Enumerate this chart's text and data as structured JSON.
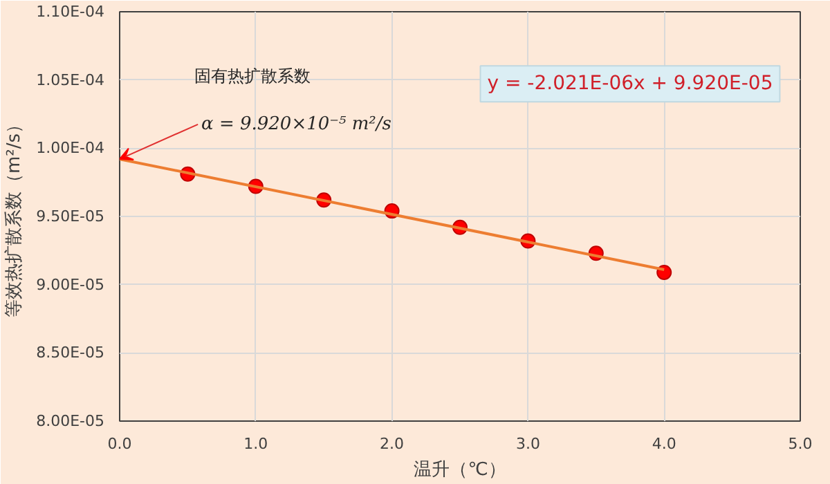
{
  "chart_data": {
    "type": "scatter",
    "xlabel": "温升（℃）",
    "ylabel": "等效热扩散系数（m²/s）",
    "x": [
      0.5,
      1.0,
      1.5,
      2.0,
      2.5,
      3.0,
      3.5,
      4.0
    ],
    "series": [
      {
        "color": "#ff0000",
        "marker": "circle",
        "values": [
          9.81e-05,
          9.72e-05,
          9.62e-05,
          9.54e-05,
          9.42e-05,
          9.32e-05,
          9.23e-05,
          9.09e-05
        ]
      },
      {
        "type": "line",
        "color": "#ed7d31",
        "x": [
          0.0,
          4.0
        ],
        "values": [
          9.92e-05,
          9.11e-05
        ]
      }
    ],
    "xlim": [
      0.0,
      5.0
    ],
    "xticks": [
      {
        "value": 0,
        "label": "0.0"
      },
      {
        "value": 1,
        "label": "1.0"
      },
      {
        "value": 2,
        "label": "2.0"
      },
      {
        "value": 3,
        "label": "3.0"
      },
      {
        "value": 4,
        "label": "4.0"
      },
      {
        "value": 5,
        "label": "5.0"
      }
    ],
    "ylim": [
      8e-05,
      0.00011
    ],
    "yticks": [
      {
        "value": 8e-05,
        "label": "8.00E-05"
      },
      {
        "value": 8.5e-05,
        "label": "8.50E-05"
      },
      {
        "value": 9e-05,
        "label": "9.00E-05"
      },
      {
        "value": 9.5e-05,
        "label": "9.50E-05"
      },
      {
        "value": 0.0001,
        "label": "1.00E-04"
      },
      {
        "value": 0.000105,
        "label": "1.05E-04"
      },
      {
        "value": 0.00011,
        "label": "1.10E-04"
      }
    ],
    "grid": true,
    "annotations": [
      "固有热扩散系数",
      {
        "text": "α = 9.920×10⁻⁵ m²/s",
        "x": 0.0,
        "y": 9.92e-05
      },
      "y = -2.021E-06x + 9.920E-05"
    ]
  }
}
